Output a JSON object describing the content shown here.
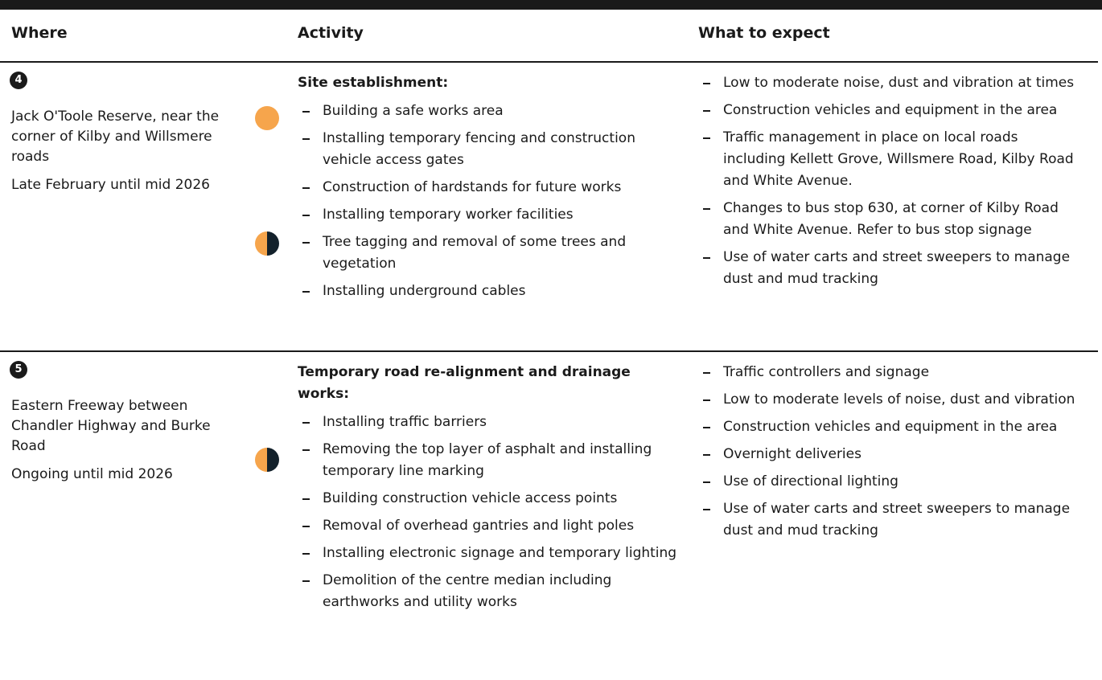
{
  "header": {
    "columns": [
      "Where",
      "Activity",
      "What to expect"
    ]
  },
  "rows": [
    {
      "number": "4",
      "location": "Jack O'Toole Reserve, near the corner of Kilby and Willsmere roads",
      "timing": "Late February until mid 2026",
      "activity_title": "Site establishment:",
      "activities": [
        "Building a safe works area",
        "Installing temporary fencing and construction vehicle access gates",
        "Construction of hardstands for future works",
        "Installing temporary worker facilities",
        "Tree tagging and removal of some trees and vegetation",
        "Installing underground cables"
      ],
      "expectations": [
        "Low to moderate noise, dust and vibration at times",
        "Construction vehicles and equipment in the area",
        "Traffic management in place on local roads including Kellett Grove, Willsmere Road, Kilby Road and White Avenue.",
        "Changes to bus stop 630, at corner of Kilby Road and White Avenue. Refer to bus stop signage",
        "Use of water carts and street sweepers to manage dust and mud tracking"
      ]
    },
    {
      "number": "5",
      "location": "Eastern Freeway between Chandler Highway and Burke Road",
      "timing": "Ongoing until mid 2026",
      "activity_title": "Temporary road re-alignment and drainage works:",
      "activities": [
        "Installing traffic barriers",
        "Removing the top layer of asphalt and installing temporary line marking",
        "Building construction vehicle access points",
        "Removal of overhead gantries and light poles",
        "Installing electronic signage and temporary lighting",
        "Demolition of the centre median including earthworks and utility works"
      ],
      "expectations": [
        "Traffic controllers and signage",
        "Low to moderate levels of noise, dust and vibration",
        "Construction vehicles and equipment in the area",
        "Overnight deliveries",
        "Use of directional lighting",
        "Use of water carts and street sweepers to manage dust and mud tracking"
      ]
    }
  ]
}
